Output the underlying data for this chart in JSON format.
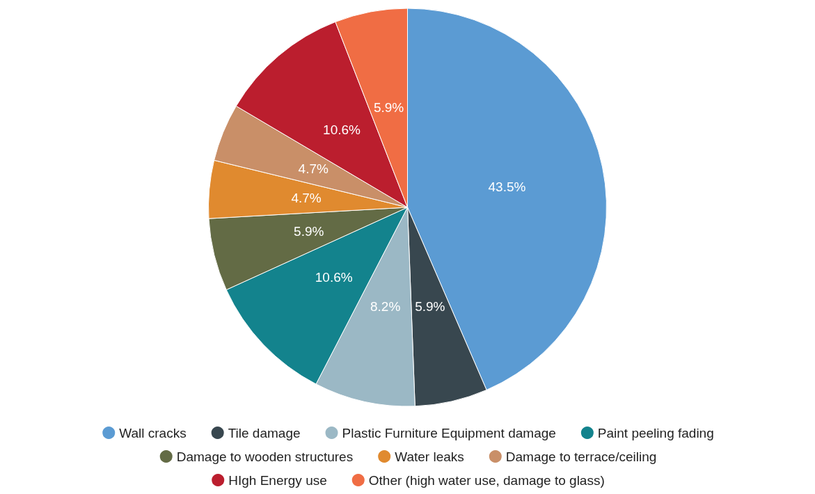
{
  "chart_data": {
    "type": "pie",
    "categories": [
      "Wall cracks",
      "Tile damage",
      "Plastic Furniture Equipment damage",
      "Paint peeling fading",
      "Damage to wooden structures",
      "Water leaks",
      "Damage to terrace/ceiling",
      "HIgh Energy use",
      "Other (high water use, damage to glass)"
    ],
    "values": [
      43.5,
      5.9,
      8.2,
      10.6,
      5.9,
      4.7,
      4.7,
      10.6,
      5.9
    ],
    "colors": [
      "#5b9bd3",
      "#38474f",
      "#9bb8c5",
      "#13838d",
      "#636b45",
      "#e08a2f",
      "#c98f68",
      "#bb1e2e",
      "#f06d44"
    ],
    "value_labels": [
      "43.5%",
      "5.9%",
      "8.2%",
      "10.6%",
      "5.9%",
      "4.7%",
      "4.7%",
      "10.6%",
      "5.9%"
    ],
    "legend": "bottom"
  }
}
